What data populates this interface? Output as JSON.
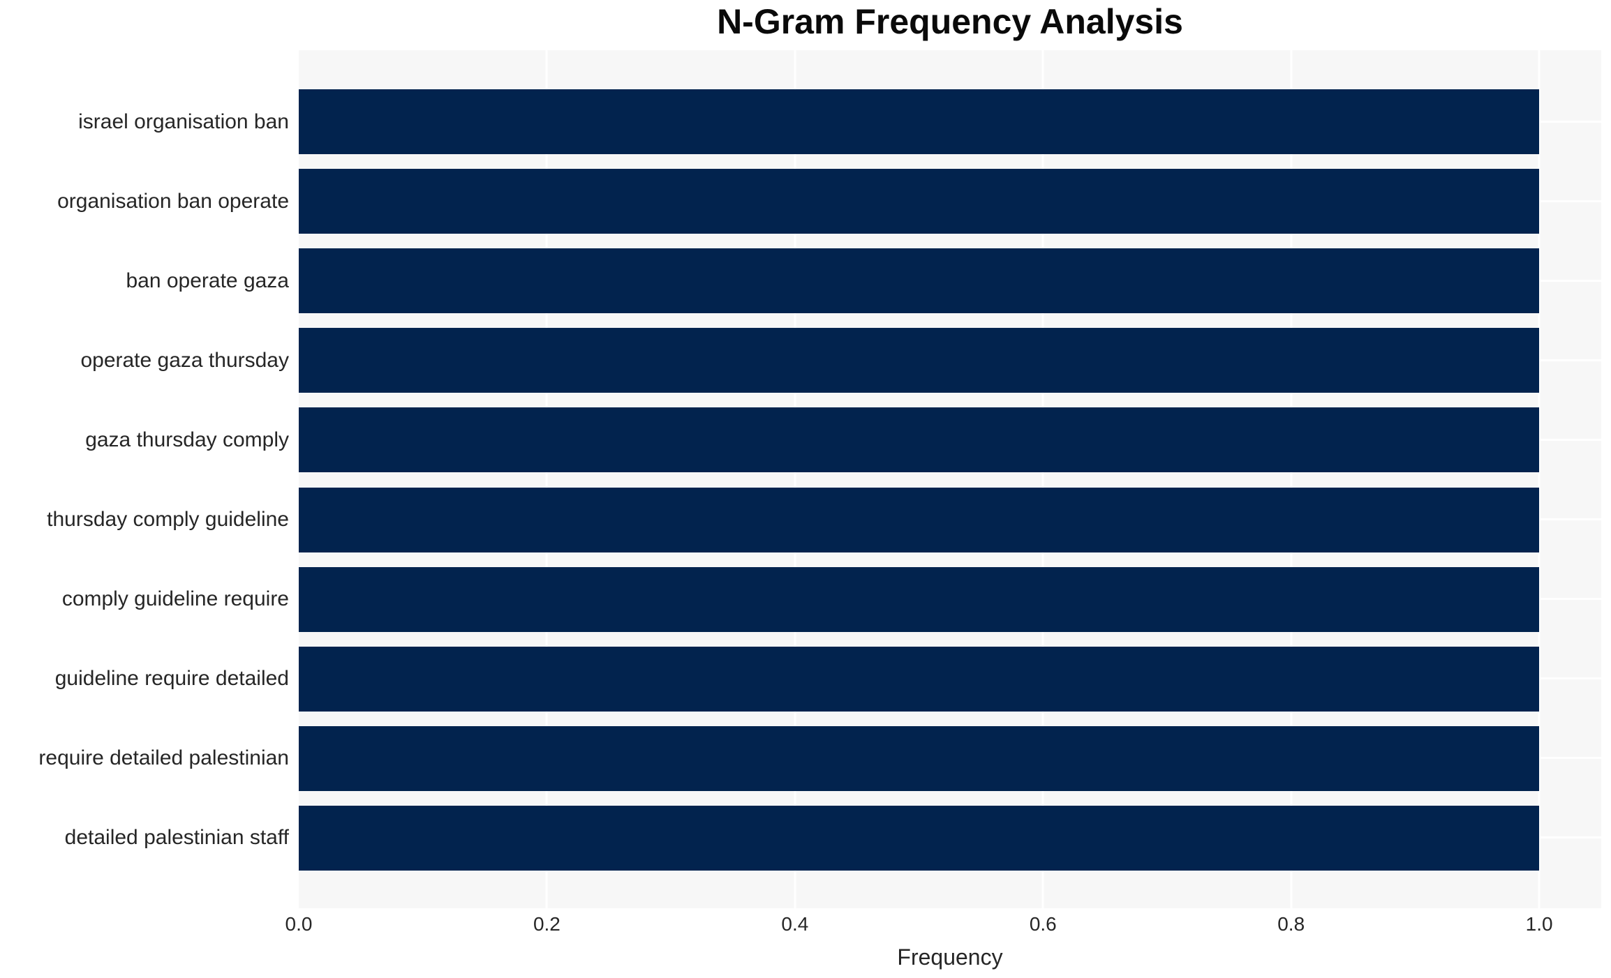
{
  "chart_data": {
    "type": "bar",
    "orientation": "horizontal",
    "title": "N-Gram Frequency Analysis",
    "xlabel": "Frequency",
    "ylabel": "",
    "categories": [
      "israel organisation ban",
      "organisation ban operate",
      "ban operate gaza",
      "operate gaza thursday",
      "gaza thursday comply",
      "thursday comply guideline",
      "comply guideline require",
      "guideline require detailed",
      "require detailed palestinian",
      "detailed palestinian staff"
    ],
    "values": [
      1.0,
      1.0,
      1.0,
      1.0,
      1.0,
      1.0,
      1.0,
      1.0,
      1.0,
      1.0
    ],
    "x_ticks": [
      0.0,
      0.2,
      0.4,
      0.6,
      0.8,
      1.0
    ],
    "xlim": [
      0,
      1.05
    ],
    "grid": true,
    "legend": null,
    "colors": {
      "bar": "#02234e",
      "plot_background": "#f7f7f7",
      "gridline": "#ffffff",
      "tick_text": "#262626",
      "title_text": "#0a0a0a"
    }
  }
}
